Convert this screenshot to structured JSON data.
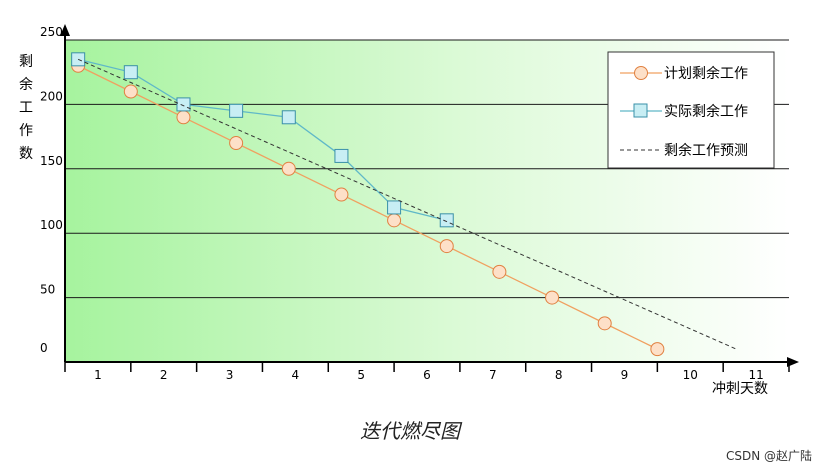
{
  "chart_data": {
    "type": "line",
    "title": "迭代燃尽图",
    "xlabel": "冲刺天数",
    "ylabel": "剩余工作数",
    "ylim": [
      0,
      250
    ],
    "xlim": [
      0,
      11
    ],
    "y_ticks": [
      "0",
      "50",
      "100",
      "150",
      "200",
      "250"
    ],
    "x_ticks": [
      "1",
      "2",
      "3",
      "4",
      "5",
      "6",
      "7",
      "8",
      "9",
      "10",
      "11"
    ],
    "legend_position": "top-right",
    "grid": true,
    "series": [
      {
        "name": "计划剩余工作",
        "color": "#f0a060",
        "marker": "circle",
        "x": [
          0.2,
          1.0,
          1.8,
          2.6,
          3.4,
          4.2,
          5.0,
          5.8,
          6.6,
          7.4,
          8.2,
          9.0
        ],
        "y": [
          230,
          210,
          190,
          170,
          150,
          130,
          110,
          90,
          70,
          50,
          30,
          10
        ]
      },
      {
        "name": "实际剩余工作",
        "color": "#5fb8c8",
        "marker": "square",
        "x": [
          0.2,
          1.0,
          1.8,
          2.6,
          3.4,
          4.2,
          5.0,
          5.8
        ],
        "y": [
          235,
          225,
          200,
          195,
          190,
          160,
          120,
          110
        ]
      },
      {
        "name": "剩余工作预测",
        "color": "#333333",
        "marker": "none",
        "dashed": true,
        "x": [
          0.2,
          10.2
        ],
        "y": [
          235,
          10
        ]
      }
    ]
  },
  "watermark": "CSDN @赵广陆"
}
